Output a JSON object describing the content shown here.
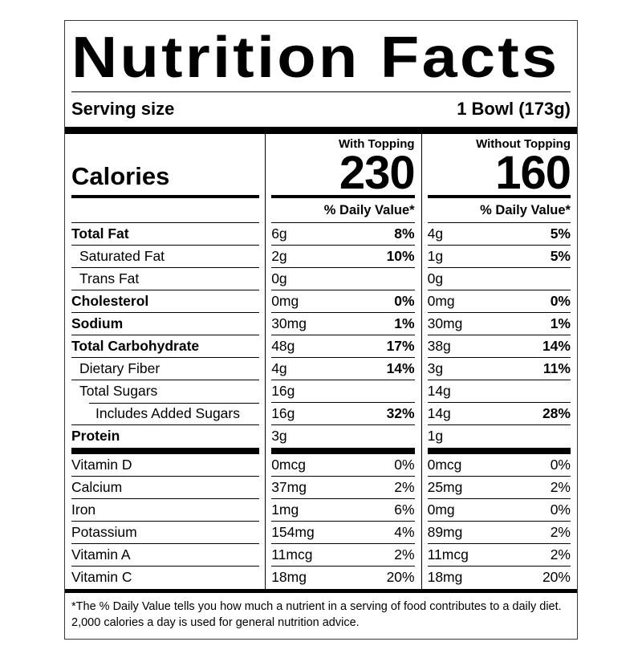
{
  "label": {
    "title": "Nutrition Facts",
    "serving_size_label": "Serving size",
    "serving_size_value": "1 Bowl (173g)",
    "calories_label": "Calories",
    "daily_value_header": "% Daily Value*",
    "columns": [
      {
        "name": "With Topping",
        "calories": "230"
      },
      {
        "name": "Without Topping",
        "calories": "160"
      }
    ],
    "nutrients": [
      {
        "name": "Total Fat",
        "cols": [
          {
            "amount": "6g",
            "dv": "8%"
          },
          {
            "amount": "4g",
            "dv": "5%"
          }
        ]
      },
      {
        "name": "Saturated Fat",
        "cols": [
          {
            "amount": "2g",
            "dv": "10%"
          },
          {
            "amount": "1g",
            "dv": "5%"
          }
        ]
      },
      {
        "name": "Trans Fat",
        "cols": [
          {
            "amount": "0g",
            "dv": ""
          },
          {
            "amount": "0g",
            "dv": ""
          }
        ]
      },
      {
        "name": "Cholesterol",
        "cols": [
          {
            "amount": "0mg",
            "dv": "0%"
          },
          {
            "amount": "0mg",
            "dv": "0%"
          }
        ]
      },
      {
        "name": "Sodium",
        "cols": [
          {
            "amount": "30mg",
            "dv": "1%"
          },
          {
            "amount": "30mg",
            "dv": "1%"
          }
        ]
      },
      {
        "name": "Total Carbohydrate",
        "cols": [
          {
            "amount": "48g",
            "dv": "17%"
          },
          {
            "amount": "38g",
            "dv": "14%"
          }
        ]
      },
      {
        "name": "Dietary Fiber",
        "cols": [
          {
            "amount": "4g",
            "dv": "14%"
          },
          {
            "amount": "3g",
            "dv": "11%"
          }
        ]
      },
      {
        "name": "Total Sugars",
        "cols": [
          {
            "amount": "16g",
            "dv": ""
          },
          {
            "amount": "14g",
            "dv": ""
          }
        ]
      },
      {
        "name": "Includes Added Sugars",
        "cols": [
          {
            "amount": "16g",
            "dv": "32%"
          },
          {
            "amount": "14g",
            "dv": "28%"
          }
        ]
      },
      {
        "name": "Protein",
        "cols": [
          {
            "amount": "3g",
            "dv": ""
          },
          {
            "amount": "1g",
            "dv": ""
          }
        ]
      }
    ],
    "vitamins": [
      {
        "name": "Vitamin D",
        "cols": [
          {
            "amount": "0mcg",
            "dv": "0%"
          },
          {
            "amount": "0mcg",
            "dv": "0%"
          }
        ]
      },
      {
        "name": "Calcium",
        "cols": [
          {
            "amount": "37mg",
            "dv": "2%"
          },
          {
            "amount": "25mg",
            "dv": "2%"
          }
        ]
      },
      {
        "name": "Iron",
        "cols": [
          {
            "amount": "1mg",
            "dv": "6%"
          },
          {
            "amount": "0mg",
            "dv": "0%"
          }
        ]
      },
      {
        "name": "Potassium",
        "cols": [
          {
            "amount": "154mg",
            "dv": "4%"
          },
          {
            "amount": "89mg",
            "dv": "2%"
          }
        ]
      },
      {
        "name": "Vitamin A",
        "cols": [
          {
            "amount": "11mcg",
            "dv": "2%"
          },
          {
            "amount": "11mcg",
            "dv": "2%"
          }
        ]
      },
      {
        "name": "Vitamin C",
        "cols": [
          {
            "amount": "18mg",
            "dv": "20%"
          },
          {
            "amount": "18mg",
            "dv": "20%"
          }
        ]
      }
    ],
    "footnote_line1": "*The % Daily Value tells you how much a nutrient in a serving of food contributes to a daily diet.",
    "footnote_line2": "2,000 calories a day is used for general nutrition advice."
  }
}
